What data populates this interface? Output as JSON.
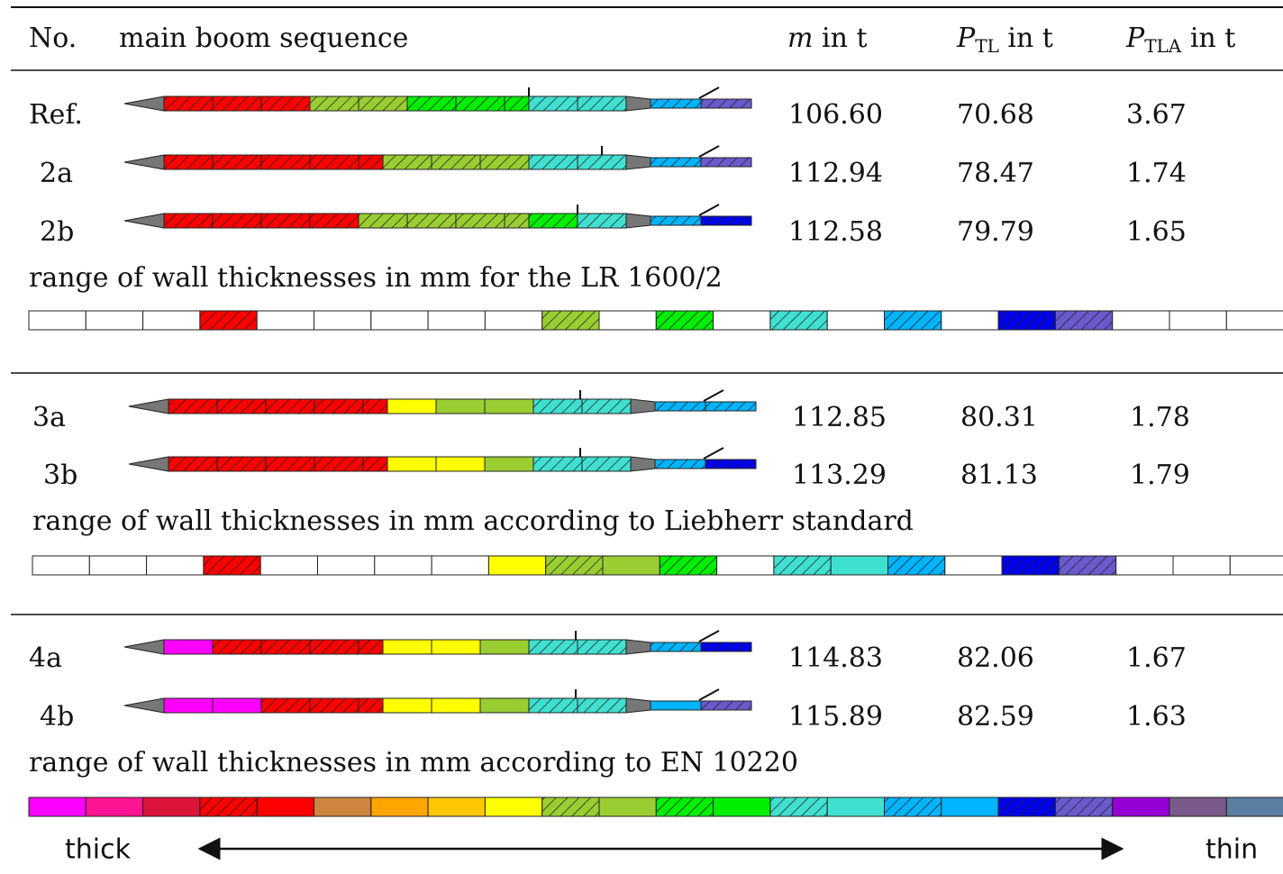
{
  "header": {
    "number": "No.",
    "sequence": "main boom sequence",
    "mass": {
      "symbol": "m",
      "text": "in t"
    },
    "load": {
      "symbol": "P",
      "subscript": "TL",
      "text": "in t"
    },
    "load_a": {
      "symbol": "P",
      "subscript": "TLA",
      "text": "in t"
    }
  },
  "groups": [
    {
      "rows": [
        [
          "Ref.",
          "106.60",
          "70.68",
          "3.67"
        ],
        [
          "2a",
          "112.94",
          "78.47",
          "1.74"
        ],
        [
          "2b",
          "112.58",
          "79.79",
          "1.65"
        ]
      ],
      "caption": "range of wall thicknesses in mm for the LR 1600/2"
    },
    {
      "rows": [
        [
          "3a",
          "112.85",
          "80.31",
          "1.78"
        ],
        [
          "3b",
          "113.29",
          "81.13",
          "1.79"
        ]
      ],
      "caption": "range of wall thicknesses in mm according to Liebherr standard"
    },
    {
      "rows": [
        [
          "4a",
          "114.83",
          "82.06",
          "1.67"
        ],
        [
          "4b",
          "115.89",
          "82.59",
          "1.63"
        ]
      ],
      "caption": "range of wall thicknesses in mm according to EN 10220"
    }
  ],
  "footer": {
    "left": "thick",
    "right": "thin"
  }
}
